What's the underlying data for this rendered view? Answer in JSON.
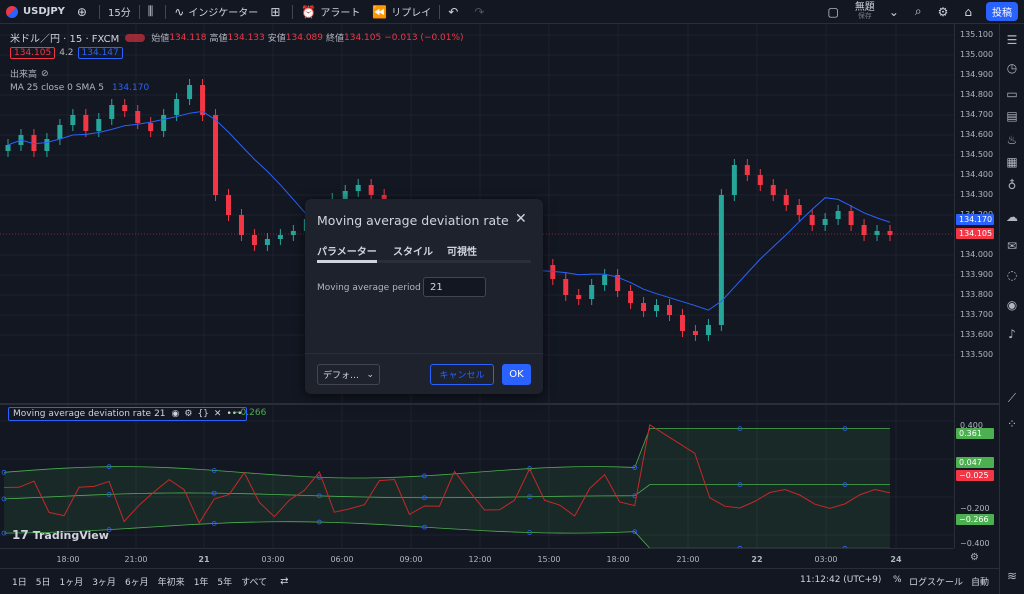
{
  "topbar": {
    "symbol": "USDJPY",
    "add_icon": "plus-circle-icon",
    "interval": "15分",
    "indicators": "インジケーター",
    "alert": "アラート",
    "replay": "リプレイ",
    "layout_name": "無題",
    "layout_sub": "保存",
    "post": "投稿"
  },
  "legend": {
    "symbol_line": "米ドル／円 · 15 · FXCM",
    "open_label": "始値",
    "open": "134.118",
    "high_label": "高値",
    "high": "134.133",
    "low_label": "安値",
    "low": "134.089",
    "close_label": "終値",
    "close": "134.105",
    "change": "−0.013 (−0.01%)",
    "bid": "134.105",
    "spread": "4.2",
    "ask": "134.147",
    "volume_label": "出来高",
    "ma_label": "MA 25 close 0 SMA 5",
    "ma_value": "134.170"
  },
  "indicator_legend": {
    "name": "Moving average deviation rate",
    "period": "21",
    "value": "−0.266"
  },
  "price_axis": {
    "labels": [
      "135.100",
      "135.000",
      "134.900",
      "134.800",
      "134.700",
      "134.600",
      "134.500",
      "134.400",
      "134.300",
      "134.200",
      "134.000",
      "133.900",
      "133.800",
      "133.700",
      "133.600",
      "133.500"
    ],
    "ma_badge": "134.170",
    "price_badge": "134.105"
  },
  "ind_axis": {
    "labels": [
      "0.400",
      "0.200",
      "0.000",
      "−0.200",
      "−0.400"
    ],
    "badges": [
      "0.361",
      "0.047",
      "−0.025",
      "−0.266"
    ]
  },
  "time_axis": {
    "labels": [
      "18:00",
      "21:00",
      "21",
      "03:00",
      "06:00",
      "09:00",
      "12:00",
      "15:00",
      "18:00",
      "21:00",
      "22",
      "03:00",
      "24"
    ]
  },
  "bottombar": {
    "ranges": [
      "1日",
      "5日",
      "1ヶ月",
      "3ヶ月",
      "6ヶ月",
      "年初来",
      "1年",
      "5年",
      "すべて"
    ],
    "clock": "11:12:42 (UTC+9)",
    "percent": "%",
    "log": "ログスケール",
    "auto": "自動"
  },
  "dialog": {
    "title": "Moving average deviation rate",
    "tabs": [
      "パラメーター",
      "スタイル",
      "可視性"
    ],
    "param_label": "Moving average period",
    "param_value": "21",
    "default_btn": "デフォ…",
    "cancel": "キャンセル",
    "ok": "OK"
  },
  "brand": {
    "logo_text": "TradingView"
  },
  "colors": {
    "up": "#26a69a",
    "down": "#f23645",
    "ma": "#2962ff",
    "band": "#4caf50",
    "accent": "#2962ff"
  }
}
